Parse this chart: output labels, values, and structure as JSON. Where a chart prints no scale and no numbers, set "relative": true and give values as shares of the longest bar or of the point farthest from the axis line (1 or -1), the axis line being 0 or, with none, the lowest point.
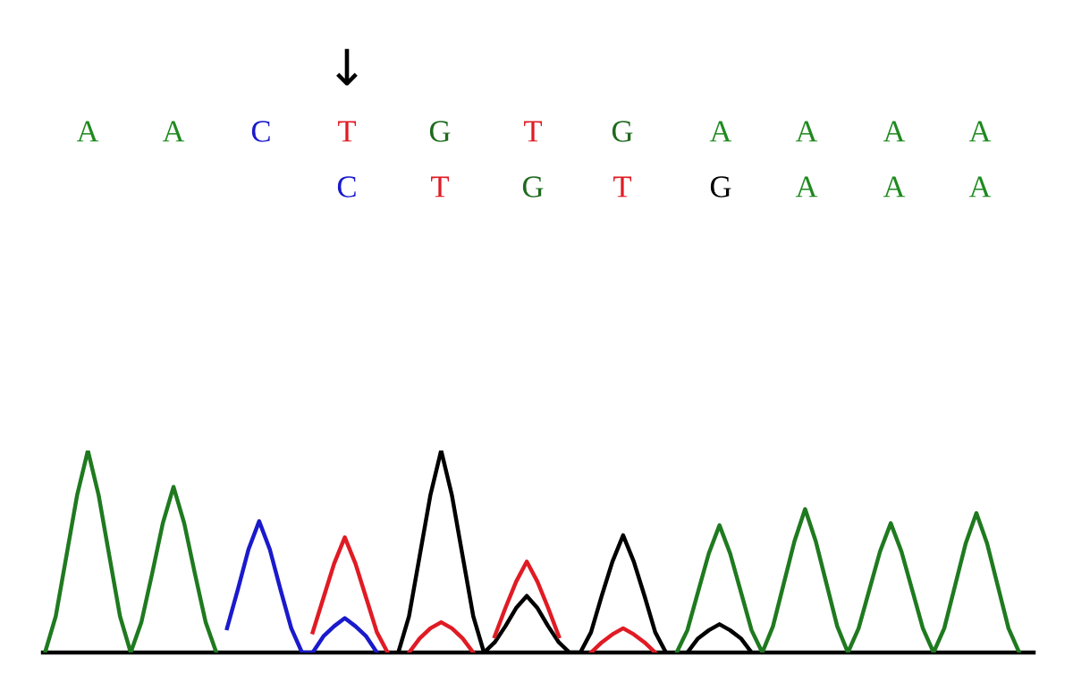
{
  "chart_data": {
    "type": "line",
    "relative": true,
    "legend": false,
    "grid": false,
    "marker": "none",
    "line_style": "solid",
    "categories": [
      null,
      null,
      null,
      null,
      null,
      null,
      null,
      null,
      null,
      null,
      null,
      null,
      null,
      null,
      null,
      null,
      null,
      null,
      null,
      null,
      null,
      null,
      null,
      null,
      null,
      null,
      null,
      null,
      null,
      null,
      null,
      null,
      null,
      null,
      null,
      null,
      null,
      null,
      null,
      null,
      null,
      null,
      null,
      null,
      null,
      null,
      null,
      null,
      null,
      null,
      null,
      null,
      null,
      null,
      null,
      null,
      null,
      null,
      null,
      null,
      null,
      null,
      null,
      null,
      null,
      null,
      null,
      null,
      null,
      null,
      null,
      null,
      null,
      null,
      null,
      null,
      null,
      null,
      null,
      null,
      null,
      null,
      null,
      null,
      null,
      null,
      null,
      null,
      null,
      null,
      null,
      null,
      null
    ],
    "series": [
      {
        "color": "#1f7a1f",
        "values": [
          0,
          0.18,
          0.48,
          0.78,
          1.0,
          0.78,
          0.48,
          0.18,
          0,
          0.15,
          0.39,
          0.64,
          0.82,
          0.64,
          0.39,
          0.15,
          0,
          null,
          null,
          null,
          null,
          null,
          null,
          null,
          null,
          null,
          null,
          null,
          null,
          null,
          null,
          null,
          null,
          null,
          null,
          null,
          null,
          null,
          null,
          null,
          null,
          null,
          null,
          null,
          null,
          null,
          null,
          null,
          null,
          null,
          null,
          null,
          null,
          null,
          null,
          null,
          null,
          null,
          null,
          0,
          0.11,
          0.3,
          0.49,
          0.63,
          0.49,
          0.3,
          0.11,
          0,
          0.13,
          0.34,
          0.55,
          0.71,
          0.55,
          0.34,
          0.13,
          0,
          0.12,
          0.31,
          0.5,
          0.64,
          0.5,
          0.31,
          0.12,
          0,
          0.12,
          0.33,
          0.54,
          0.69,
          0.54,
          0.33,
          0.12,
          0,
          null
        ]
      },
      {
        "color": "#1a1acc",
        "values": [
          null,
          null,
          null,
          null,
          null,
          null,
          null,
          null,
          null,
          null,
          null,
          null,
          null,
          null,
          null,
          null,
          null,
          0.12,
          0.31,
          0.51,
          0.65,
          0.51,
          0.31,
          0.12,
          0,
          0,
          0.08,
          0.13,
          0.17,
          0.13,
          0.08,
          0,
          null,
          null,
          null,
          null,
          null,
          null,
          null,
          null,
          null,
          null,
          null,
          null,
          null,
          null,
          null,
          null,
          null,
          null,
          null,
          null,
          null,
          null,
          null,
          null,
          null,
          null,
          null,
          null,
          null,
          null,
          null,
          null,
          null,
          null,
          null,
          null,
          null,
          null,
          null,
          null,
          null,
          null,
          null,
          null,
          null,
          null,
          null,
          null,
          null,
          null,
          null,
          null,
          null,
          null,
          null,
          null,
          null,
          null,
          null,
          null,
          null
        ]
      },
      {
        "color": "#000000",
        "values": [
          null,
          null,
          null,
          null,
          null,
          null,
          null,
          null,
          null,
          null,
          null,
          null,
          null,
          null,
          null,
          null,
          null,
          null,
          null,
          null,
          null,
          null,
          null,
          null,
          null,
          null,
          null,
          null,
          null,
          null,
          null,
          null,
          null,
          0,
          0.18,
          0.48,
          0.78,
          1.0,
          0.78,
          0.48,
          0.18,
          0,
          0.05,
          0.13,
          0.22,
          0.28,
          0.22,
          0.13,
          0.05,
          0,
          0,
          0.1,
          0.28,
          0.45,
          0.58,
          0.45,
          0.28,
          0.1,
          0,
          null,
          0,
          0.07,
          0.11,
          0.14,
          0.11,
          0.07,
          0,
          null,
          null,
          null,
          null,
          null,
          null,
          null,
          null,
          null,
          null,
          null,
          null,
          null,
          null,
          null,
          null,
          null,
          null,
          null,
          null,
          null,
          null,
          null,
          null,
          null,
          null
        ]
      },
      {
        "color": "#e01b24",
        "values": [
          null,
          null,
          null,
          null,
          null,
          null,
          null,
          null,
          null,
          null,
          null,
          null,
          null,
          null,
          null,
          null,
          null,
          null,
          null,
          null,
          null,
          null,
          null,
          null,
          null,
          0.1,
          0.27,
          0.44,
          0.57,
          0.44,
          0.27,
          0.1,
          0,
          null,
          0,
          0.07,
          0.12,
          0.15,
          0.12,
          0.07,
          0,
          null,
          0.08,
          0.22,
          0.35,
          0.45,
          0.35,
          0.22,
          0.08,
          null,
          null,
          0,
          0.05,
          0.09,
          0.12,
          0.09,
          0.05,
          0,
          null,
          null,
          null,
          null,
          null,
          null,
          null,
          null,
          null,
          null,
          null,
          null,
          null,
          null,
          null,
          null,
          null,
          null,
          null,
          null,
          null,
          null,
          null,
          null,
          null,
          null,
          null,
          null,
          null,
          null,
          null,
          null,
          null,
          null,
          null
        ]
      }
    ],
    "annotations": [
      "↓",
      "A",
      "A",
      "C",
      "T",
      "G",
      "T",
      "G",
      "A",
      "A",
      "A",
      "A",
      "C",
      "T",
      "G",
      "T",
      "G",
      "A",
      "A",
      "A"
    ]
  }
}
